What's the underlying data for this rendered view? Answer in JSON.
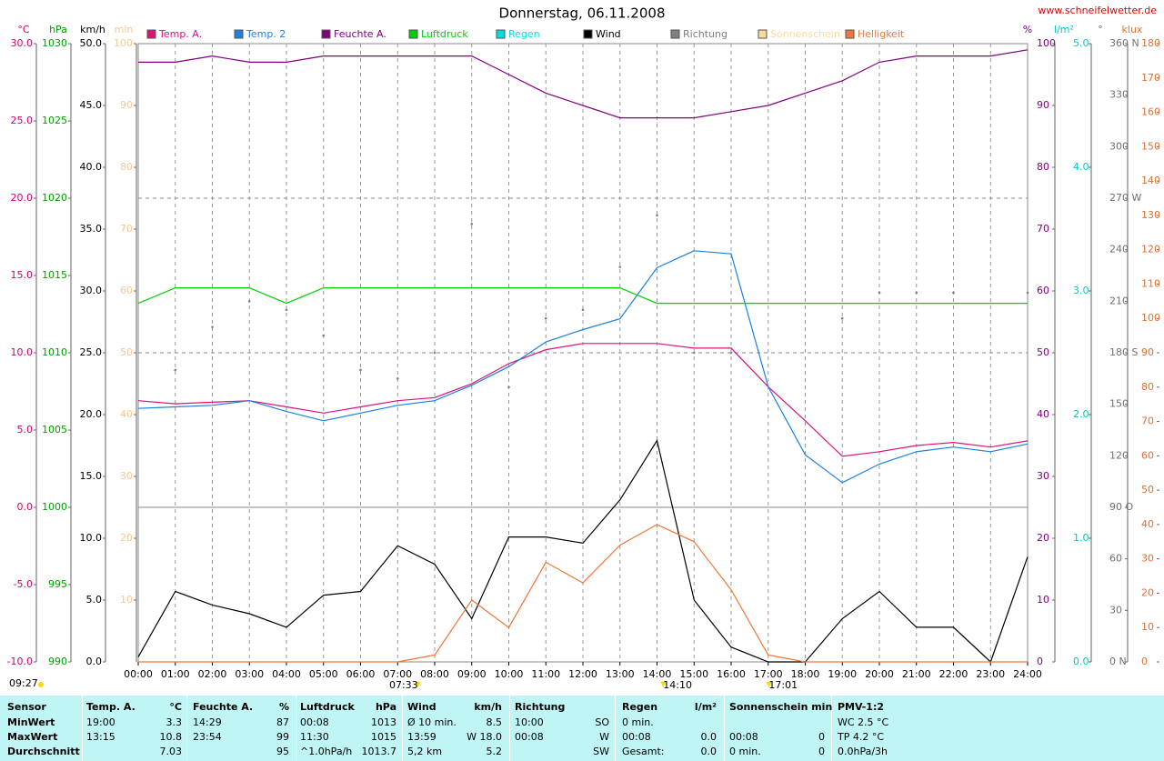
{
  "chart_data": {
    "type": "line",
    "title": "Donnerstag, 06.11.2008",
    "source": "www.schneifelwetter.de",
    "x": [
      "00:00",
      "01:00",
      "02:00",
      "03:00",
      "04:00",
      "05:00",
      "06:00",
      "07:00",
      "08:00",
      "09:00",
      "10:00",
      "11:00",
      "12:00",
      "13:00",
      "14:00",
      "15:00",
      "16:00",
      "17:00",
      "18:00",
      "19:00",
      "20:00",
      "21:00",
      "22:00",
      "23:00",
      "24:00"
    ],
    "grid": true,
    "axes": [
      {
        "label": "°C",
        "side": "left",
        "color": "#d0006f",
        "lim": [
          -10,
          30
        ],
        "ticks": [
          {
            "value": -10,
            "label": "-10.0"
          },
          {
            "value": -5,
            "label": "-5.0"
          },
          {
            "value": 0,
            "label": "0.0"
          },
          {
            "value": 5,
            "label": "5.0"
          },
          {
            "value": 10,
            "label": "10.0"
          },
          {
            "value": 15,
            "label": "15.0"
          },
          {
            "value": 20,
            "label": "20.0"
          },
          {
            "value": 25,
            "label": "25.0"
          },
          {
            "value": 30,
            "label": "30.0"
          }
        ]
      },
      {
        "label": "hPa",
        "side": "left",
        "color": "#00a000",
        "lim": [
          990,
          1030
        ],
        "ticks": [
          990,
          995,
          1000,
          1005,
          1010,
          1015,
          1020,
          1025,
          1030
        ]
      },
      {
        "label": "km/h",
        "side": "left",
        "color": "#000000",
        "lim": [
          0,
          50
        ],
        "ticks": [
          {
            "value": 0,
            "label": "0.0"
          },
          {
            "value": 5,
            "label": "5.0"
          },
          {
            "value": 10,
            "label": "10.0"
          },
          {
            "value": 15,
            "label": "15.0"
          },
          {
            "value": 20,
            "label": "20.0"
          },
          {
            "value": 25,
            "label": "25.0"
          },
          {
            "value": 30,
            "label": "30.0"
          },
          {
            "value": 35,
            "label": "35.0"
          },
          {
            "value": 40,
            "label": "40.0"
          },
          {
            "value": 45,
            "label": "45.0"
          },
          {
            "value": 50,
            "label": "50.0"
          }
        ]
      },
      {
        "label": "min",
        "side": "left",
        "color": "#f5c890",
        "lim": [
          0,
          100
        ],
        "ticks": [
          10,
          20,
          30,
          40,
          50,
          60,
          70,
          80,
          90,
          100
        ]
      },
      {
        "label": "%",
        "side": "right",
        "color": "#800080",
        "lim": [
          0,
          100
        ],
        "ticks": [
          0,
          10,
          20,
          30,
          40,
          50,
          60,
          70,
          80,
          90,
          100
        ]
      },
      {
        "label": "l/m²",
        "side": "right",
        "color": "#00c8c8",
        "lim": [
          0,
          5
        ],
        "ticks": [
          {
            "value": 0,
            "label": "0.0"
          },
          {
            "value": 1,
            "label": "1.0"
          },
          {
            "value": 2,
            "label": "2.0"
          },
          {
            "value": 3,
            "label": "3.0"
          },
          {
            "value": 4,
            "label": "4.0"
          },
          {
            "value": 5,
            "label": "5.0"
          }
        ]
      },
      {
        "label": "°",
        "side": "right",
        "color": "#707070",
        "lim": [
          0,
          360
        ],
        "ticks": [
          {
            "value": 0,
            "label": "0 N"
          },
          30,
          60,
          {
            "value": 90,
            "label": "90 O"
          },
          120,
          150,
          {
            "value": 180,
            "label": "180 S"
          },
          210,
          240,
          {
            "value": 270,
            "label": "270 W"
          },
          300,
          330,
          {
            "value": 360,
            "label": "360 N"
          }
        ]
      },
      {
        "label": "klux",
        "side": "right",
        "color": "#e07030",
        "lim": [
          0,
          180
        ],
        "ticks": [
          0,
          10,
          20,
          30,
          40,
          50,
          60,
          70,
          80,
          90,
          100,
          110,
          120,
          130,
          140,
          150,
          160,
          170,
          180
        ]
      }
    ],
    "series": [
      {
        "name": "Temp. A.",
        "color": "#e0107a",
        "axis": "°C",
        "style": "line",
        "values": [
          6.9,
          6.7,
          6.8,
          6.9,
          6.5,
          6.1,
          6.5,
          6.9,
          7.1,
          8.0,
          9.3,
          10.2,
          10.6,
          10.6,
          10.6,
          10.3,
          10.3,
          7.8,
          5.6,
          3.3,
          3.6,
          4.0,
          4.2,
          3.9,
          4.3
        ]
      },
      {
        "name": "Temp. 2",
        "color": "#1e80e0",
        "axis": "°C",
        "style": "line",
        "values": [
          6.4,
          6.5,
          6.6,
          6.9,
          6.2,
          5.6,
          6.1,
          6.6,
          6.9,
          7.9,
          9.1,
          10.7,
          11.5,
          12.2,
          15.5,
          16.6,
          16.4,
          7.8,
          3.4,
          1.6,
          2.8,
          3.6,
          3.9,
          3.6,
          4.1
        ]
      },
      {
        "name": "Feuchte A.",
        "color": "#800080",
        "axis": "%",
        "style": "line",
        "values": [
          97,
          97,
          98,
          97,
          97,
          98,
          98,
          98,
          98,
          98,
          95,
          92,
          90,
          88,
          88,
          88,
          89,
          90,
          92,
          94,
          97,
          98,
          98,
          98,
          99
        ]
      },
      {
        "name": "Luftdruck",
        "color": "#00d000",
        "axis": "hPa",
        "style": "line",
        "values": [
          1013.2,
          1014.2,
          1014.2,
          1014.2,
          1013.2,
          1014.2,
          1014.2,
          1014.2,
          1014.2,
          1014.2,
          1014.2,
          1014.2,
          1014.2,
          1014.2,
          1013.2,
          1013.2,
          1013.2,
          1013.2,
          1013.2,
          1013.2,
          1013.2,
          1013.2,
          1013.2,
          1013.2,
          1013.2
        ]
      },
      {
        "name": "Regen",
        "color": "#00e0e0",
        "axis": "l/m²",
        "style": "line"
      },
      {
        "name": "Wind",
        "color": "#000000",
        "axis": "km/h",
        "style": "line",
        "values": [
          0.4,
          5.7,
          4.6,
          3.9,
          2.8,
          5.4,
          5.7,
          9.4,
          7.9,
          3.5,
          10.1,
          10.1,
          9.6,
          13.1,
          17.9,
          5.0,
          1.2,
          0,
          0,
          3.5,
          5.7,
          2.8,
          2.8,
          0,
          8.5
        ]
      },
      {
        "name": "Richtung",
        "color": "#808080",
        "axis": "°",
        "style": "dots",
        "values": [
          null,
          170,
          195,
          210,
          205,
          190,
          170,
          165,
          180,
          255,
          160,
          200,
          205,
          230,
          260,
          180,
          180,
          null,
          null,
          200,
          215,
          215,
          215,
          null,
          215
        ]
      },
      {
        "name": "Sonnenschein",
        "color": "#ffd8a0",
        "axis": "min",
        "style": "line"
      },
      {
        "name": "Helligkeit",
        "color": "#f07838",
        "axis": "klux",
        "style": "line",
        "values": [
          0,
          0,
          0,
          0,
          0,
          0,
          0,
          0,
          2,
          18,
          10,
          29,
          23,
          34,
          40,
          35,
          21,
          2,
          0,
          0,
          0,
          0,
          0,
          0,
          0
        ]
      }
    ],
    "sun_marks": [
      "07:33",
      "14:10",
      "17:01"
    ],
    "sun_duration": "09:27"
  },
  "table": {
    "header": [
      "Sensor",
      "Temp. A.",
      "°C",
      "Feuchte A.",
      "%",
      "Luftdruck",
      "hPa",
      "Wind",
      "km/h",
      "Richtung",
      null,
      "Regen",
      "l/m²",
      "Sonnenschein min",
      null,
      "PMV-1:2"
    ],
    "rows": [
      [
        "MinWert",
        "19:00",
        "3.3",
        "14:29",
        "87",
        "00:08",
        "1013",
        "Ø 10 min.",
        "8.5",
        "10:00",
        "SO",
        "0 min.",
        null,
        null,
        null,
        "WC 2.5 °C"
      ],
      [
        "MaxWert",
        "13:15",
        "10.8",
        "23:54",
        "99",
        "11:30",
        "1015",
        "13:59",
        "W 18.0",
        "00:08",
        "W",
        "00:08",
        "0.0",
        "00:08",
        "0",
        "TP 4.2 °C"
      ],
      [
        "Durchschnitt",
        null,
        "7.03",
        null,
        "95",
        "^1.0hPa/h",
        "1013.7",
        "5,2 km",
        "5.2",
        null,
        "SW",
        "Gesamt:",
        "0.0",
        "0 min.",
        "0",
        "0.0hPa/3h"
      ]
    ]
  }
}
